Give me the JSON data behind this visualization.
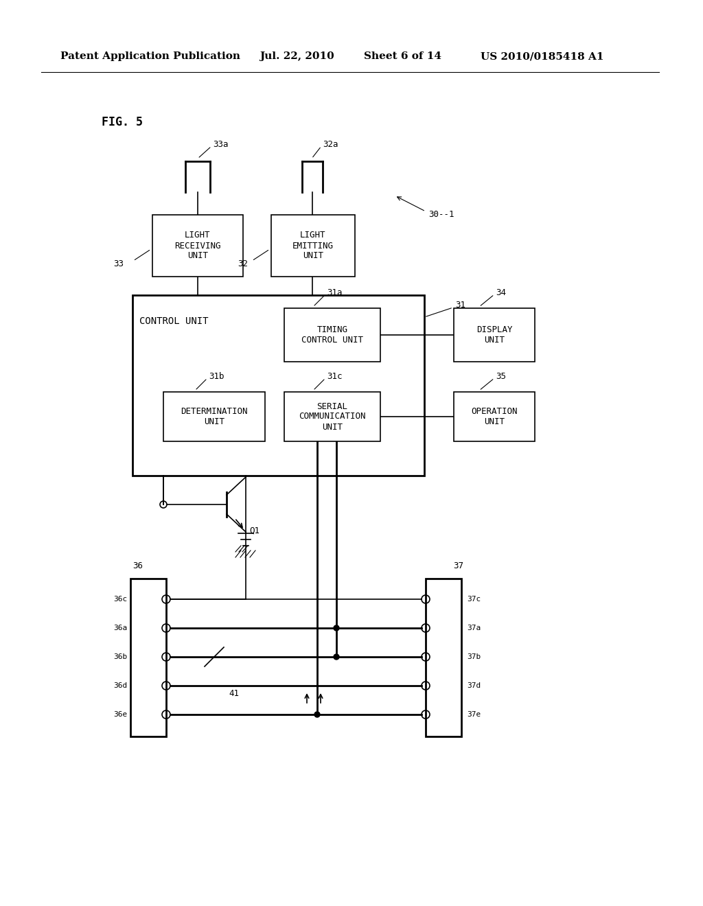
{
  "bg_color": "#ffffff",
  "header_text": "Patent Application Publication",
  "header_date": "Jul. 22, 2010",
  "header_sheet": "Sheet 6 of 14",
  "header_patent": "US 2010/0185418 A1",
  "fig_label": "FIG. 5",
  "line_color": "#000000",
  "text_color": "#000000"
}
